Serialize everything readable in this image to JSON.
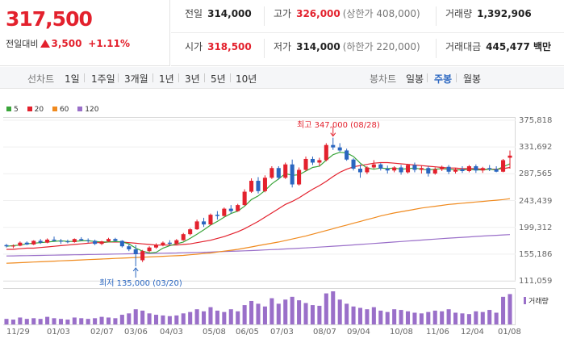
{
  "price": {
    "current": "317,500",
    "change_label": "전일대비",
    "change_value": "3,500",
    "change_pct": "+1.11%"
  },
  "quote": {
    "prev_label": "전일",
    "prev_value": "314,000",
    "high_label": "고가",
    "high_value": "326,000",
    "upper_limit": "(상한가 408,000)",
    "volume_label": "거래량",
    "volume_value": "1,392,906",
    "open_label": "시가",
    "open_value": "318,500",
    "low_label": "저가",
    "low_value": "314,000",
    "lower_limit": "(하한가 220,000)",
    "amount_label": "거래대금",
    "amount_value": "445,477 백만"
  },
  "toolbar": {
    "line_chart_title": "선차트",
    "periods": [
      "1일",
      "1주일",
      "3개월",
      "1년",
      "3년",
      "5년",
      "10년"
    ],
    "candle_chart_title": "봉차트",
    "candle_options": [
      "일봉",
      "주봉",
      "월봉"
    ],
    "candle_active": "주봉"
  },
  "legend": [
    {
      "label": "5",
      "color": "#3aa53a"
    },
    {
      "label": "20",
      "color": "#e3212d"
    },
    {
      "label": "60",
      "color": "#f08a1e"
    },
    {
      "label": "120",
      "color": "#9a6fc9"
    }
  ],
  "annotations": {
    "max_label": "최고 347,000 (08/28)",
    "min_label": "최저 135,000 (03/20)"
  },
  "volume_label": "거래량",
  "chart_data": {
    "type": "candlestick",
    "y_ticks": [
      "375,818",
      "331,692",
      "287,565",
      "243,439",
      "199,312",
      "155,186",
      "111,059"
    ],
    "ylim": [
      111059,
      375818
    ],
    "x_ticks": [
      "11/29",
      "01/03",
      "02/07",
      "03/06",
      "04/03",
      "05/08",
      "06/05",
      "07/03",
      "08/07",
      "09/04",
      "10/08",
      "11/06",
      "12/04",
      "01/08"
    ],
    "candles": [
      [
        170000,
        172000,
        166000,
        168000
      ],
      [
        168000,
        171000,
        165000,
        169000
      ],
      [
        169000,
        176000,
        168000,
        174000
      ],
      [
        174000,
        176000,
        170000,
        171000
      ],
      [
        171000,
        178000,
        170000,
        177000
      ],
      [
        177000,
        180000,
        172000,
        174000
      ],
      [
        174000,
        181000,
        173000,
        179000
      ],
      [
        179000,
        184000,
        176000,
        177000
      ],
      [
        177000,
        180000,
        172000,
        176000
      ],
      [
        176000,
        179000,
        173000,
        175000
      ],
      [
        175000,
        181000,
        174000,
        180000
      ],
      [
        180000,
        183000,
        177000,
        178000
      ],
      [
        178000,
        181000,
        174000,
        177000
      ],
      [
        177000,
        179000,
        170000,
        172000
      ],
      [
        172000,
        177000,
        170000,
        176000
      ],
      [
        176000,
        182000,
        175000,
        180000
      ],
      [
        180000,
        182000,
        176000,
        177000
      ],
      [
        177000,
        178000,
        166000,
        168000
      ],
      [
        168000,
        171000,
        160000,
        163000
      ],
      [
        163000,
        170000,
        135000,
        155000
      ],
      [
        145000,
        162000,
        142000,
        160000
      ],
      [
        160000,
        168000,
        158000,
        166000
      ],
      [
        166000,
        173000,
        164000,
        170000
      ],
      [
        170000,
        176000,
        168000,
        174000
      ],
      [
        174000,
        178000,
        170000,
        172000
      ],
      [
        172000,
        180000,
        171000,
        178000
      ],
      [
        178000,
        190000,
        177000,
        188000
      ],
      [
        188000,
        198000,
        186000,
        196000
      ],
      [
        196000,
        212000,
        195000,
        209000
      ],
      [
        209000,
        215000,
        200000,
        204000
      ],
      [
        204000,
        222000,
        203000,
        220000
      ],
      [
        220000,
        226000,
        212000,
        218000
      ],
      [
        218000,
        232000,
        217000,
        230000
      ],
      [
        230000,
        236000,
        222000,
        226000
      ],
      [
        226000,
        238000,
        225000,
        236000
      ],
      [
        236000,
        262000,
        235000,
        258000
      ],
      [
        258000,
        280000,
        256000,
        276000
      ],
      [
        276000,
        282000,
        255000,
        259000
      ],
      [
        259000,
        285000,
        257000,
        281000
      ],
      [
        281000,
        300000,
        279000,
        297000
      ],
      [
        297000,
        300000,
        278000,
        281000
      ],
      [
        281000,
        306000,
        279000,
        303000
      ],
      [
        303000,
        311000,
        265000,
        270000
      ],
      [
        270000,
        298000,
        268000,
        294000
      ],
      [
        294000,
        316000,
        292000,
        312000
      ],
      [
        312000,
        316000,
        302000,
        306000
      ],
      [
        306000,
        314000,
        300000,
        310000
      ],
      [
        310000,
        338000,
        308000,
        335000
      ],
      [
        335000,
        347000,
        327000,
        331000
      ],
      [
        331000,
        338000,
        324000,
        326000
      ],
      [
        326000,
        329000,
        309000,
        311000
      ],
      [
        311000,
        313000,
        293000,
        296000
      ],
      [
        296000,
        303000,
        281000,
        290000
      ],
      [
        290000,
        300000,
        287000,
        298000
      ],
      [
        298000,
        310000,
        296000,
        303000
      ],
      [
        303000,
        305000,
        293000,
        296000
      ],
      [
        296000,
        301000,
        288000,
        293000
      ],
      [
        293000,
        300000,
        290000,
        298000
      ],
      [
        298000,
        302000,
        286000,
        290000
      ],
      [
        290000,
        304000,
        288000,
        302000
      ],
      [
        302000,
        306000,
        290000,
        294000
      ],
      [
        294000,
        301000,
        288000,
        297000
      ],
      [
        297000,
        300000,
        283000,
        288000
      ],
      [
        288000,
        298000,
        286000,
        295000
      ],
      [
        295000,
        301000,
        292000,
        299000
      ],
      [
        299000,
        302000,
        287000,
        291000
      ],
      [
        291000,
        297000,
        288000,
        295000
      ],
      [
        295000,
        300000,
        289000,
        292000
      ],
      [
        292000,
        302000,
        290000,
        300000
      ],
      [
        300000,
        303000,
        289000,
        293000
      ],
      [
        293000,
        299000,
        289000,
        297000
      ],
      [
        297000,
        302000,
        292000,
        295000
      ],
      [
        295000,
        300000,
        290000,
        291000
      ],
      [
        291000,
        312000,
        290000,
        310000
      ],
      [
        314000,
        326000,
        296000,
        317500
      ]
    ],
    "volume": [
      8,
      7,
      10,
      8,
      9,
      8,
      11,
      9,
      8,
      7,
      10,
      9,
      8,
      9,
      11,
      10,
      9,
      14,
      16,
      22,
      20,
      16,
      14,
      13,
      12,
      13,
      16,
      18,
      22,
      19,
      25,
      20,
      18,
      22,
      19,
      28,
      34,
      30,
      26,
      38,
      30,
      36,
      40,
      35,
      31,
      28,
      27,
      45,
      48,
      36,
      30,
      26,
      24,
      22,
      25,
      20,
      18,
      22,
      21,
      19,
      17,
      16,
      18,
      20,
      19,
      22,
      17,
      16,
      15,
      19,
      18,
      21,
      17,
      40,
      44
    ],
    "ma5": [
      168000,
      169000,
      170000,
      172000,
      173000,
      174000,
      175000,
      176000,
      177000,
      176000,
      176000,
      177000,
      177000,
      176000,
      175000,
      175000,
      176000,
      175000,
      172000,
      165000,
      160000,
      157000,
      158000,
      165000,
      169000,
      172000,
      175000,
      181000,
      188000,
      195000,
      203000,
      209000,
      216000,
      222000,
      226000,
      234000,
      245000,
      251000,
      260000,
      271000,
      279000,
      288000,
      285000,
      286000,
      292000,
      298000,
      300000,
      310000,
      319000,
      323000,
      322000,
      316000,
      305000,
      297000,
      295000,
      297000,
      296000,
      297000,
      295000,
      296000,
      297000,
      295000,
      294000,
      295000,
      296000,
      295000,
      294000,
      294000,
      295000,
      294000,
      294000,
      295000,
      294000,
      299000,
      304000
    ],
    "ma20": [
      163000,
      163000,
      164000,
      165000,
      165000,
      166000,
      167000,
      168000,
      169000,
      170000,
      171000,
      172000,
      173000,
      174000,
      174000,
      175000,
      175000,
      175000,
      174000,
      173000,
      172000,
      171000,
      170000,
      170000,
      170000,
      170000,
      171000,
      172000,
      174000,
      176000,
      178000,
      181000,
      184000,
      188000,
      192000,
      197000,
      203000,
      209000,
      216000,
      223000,
      230000,
      237000,
      242000,
      248000,
      255000,
      262000,
      268000,
      275000,
      283000,
      290000,
      295000,
      299000,
      301000,
      303000,
      305000,
      306000,
      306000,
      305000,
      304000,
      303000,
      302000,
      301000,
      300000,
      299000,
      298000,
      297000,
      297000,
      296000,
      296000,
      296000,
      295000,
      295000,
      295000,
      296000,
      298000
    ],
    "ma60": [
      140000,
      140500,
      141000,
      141500,
      142000,
      142500,
      143000,
      143500,
      144000,
      144500,
      145000,
      145500,
      146000,
      146500,
      147000,
      147500,
      148000,
      148500,
      149000,
      149500,
      150000,
      150500,
      151000,
      151500,
      152000,
      152500,
      153000,
      154000,
      155000,
      156000,
      157000,
      158500,
      160000,
      161500,
      163000,
      165000,
      167000,
      169000,
      171000,
      173000,
      175000,
      177500,
      180000,
      182500,
      185000,
      188000,
      191000,
      194000,
      197000,
      200000,
      203000,
      206000,
      209000,
      212000,
      215000,
      218000,
      220500,
      223000,
      225000,
      227000,
      229000,
      231000,
      232500,
      234000,
      235500,
      237000,
      238000,
      239000,
      240000,
      241000,
      242000,
      243000,
      244000,
      245000,
      246500
    ],
    "ma120": [
      152000,
      152200,
      152400,
      152600,
      152800,
      153000,
      153200,
      153400,
      153600,
      153800,
      154000,
      154200,
      154400,
      154600,
      154800,
      155000,
      155200,
      155400,
      155600,
      155800,
      156000,
      156200,
      156400,
      156600,
      156800,
      157000,
      157300,
      157600,
      157900,
      158200,
      158500,
      158900,
      159300,
      159700,
      160100,
      160500,
      161000,
      161500,
      162000,
      162500,
      163000,
      163600,
      164200,
      164800,
      165400,
      166000,
      166700,
      167400,
      168100,
      168800,
      169500,
      170200,
      171000,
      171800,
      172600,
      173400,
      174200,
      175000,
      175800,
      176600,
      177400,
      178200,
      179000,
      179800,
      180600,
      181400,
      182100,
      182800,
      183500,
      184200,
      184900,
      185500,
      186100,
      186700,
      187300
    ]
  }
}
